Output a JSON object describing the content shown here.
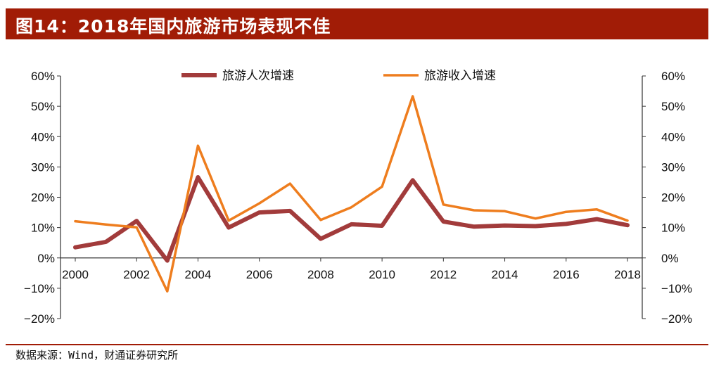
{
  "header": {
    "title": "图14：2018年国内旅游市场表现不佳"
  },
  "footer": {
    "source": "数据来源：Wind，财通证券研究所"
  },
  "colors": {
    "title_bar": "#a11c06",
    "series_visits": "#a23b3b",
    "series_revenue": "#ee7d1e"
  },
  "chart_data": {
    "type": "line",
    "x": [
      2000,
      2001,
      2002,
      2003,
      2004,
      2005,
      2006,
      2007,
      2008,
      2009,
      2010,
      2011,
      2012,
      2013,
      2014,
      2015,
      2016,
      2017,
      2018
    ],
    "x_tick_labels": [
      "2000",
      "2002",
      "2004",
      "2006",
      "2008",
      "2010",
      "2012",
      "2014",
      "2016",
      "2018"
    ],
    "x_tick_values": [
      2000,
      2002,
      2004,
      2006,
      2008,
      2010,
      2012,
      2014,
      2016,
      2018
    ],
    "y_tick_labels": [
      "60%",
      "50%",
      "40%",
      "30%",
      "20%",
      "10%",
      "0%",
      "−10%",
      "−20%"
    ],
    "y_tick_values": [
      60,
      50,
      40,
      30,
      20,
      10,
      0,
      -10,
      -20
    ],
    "ylim": [
      -20,
      60
    ],
    "xlim": [
      2000,
      2018
    ],
    "legend_position": "top",
    "series": [
      {
        "name": "旅游人次增速",
        "color": "#a23b3b",
        "values": [
          3.5,
          5.3,
          12.2,
          -0.9,
          26.6,
          10.0,
          15.0,
          15.5,
          6.3,
          11.1,
          10.6,
          25.6,
          12.0,
          10.3,
          10.7,
          10.5,
          11.2,
          12.8,
          10.8
        ]
      },
      {
        "name": "旅游收入增速",
        "color": "#ee7d1e",
        "values": [
          12.1,
          11.0,
          10.1,
          -11.0,
          37.0,
          12.3,
          18.0,
          24.5,
          12.5,
          16.7,
          23.5,
          53.3,
          17.6,
          15.7,
          15.4,
          13.0,
          15.2,
          16.0,
          12.3
        ]
      }
    ]
  }
}
